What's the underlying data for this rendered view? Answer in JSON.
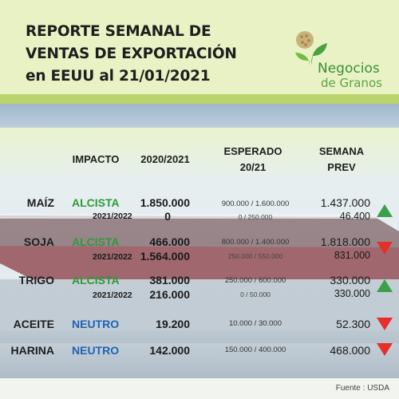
{
  "header": {
    "title": "REPORTE SEMANAL DE\nVENTAS DE EXPORTACIÓN\nen EEUU al 21/01/2021",
    "logo_name_line1": "Negocios",
    "logo_name_line2": "de Granos",
    "brand_color": "#3a8f3a"
  },
  "columns": {
    "impacto": "IMPACTO",
    "year": "2020/2021",
    "esperado_1": "ESPERADO",
    "esperado_2": "20/21",
    "semana_1": "SEMANA",
    "semana_2": "PREV"
  },
  "rows": [
    {
      "product": "MAÍZ",
      "impact": "ALCISTA",
      "value": "1.850.000",
      "sub_year": "2021/2022",
      "sub_value": "0",
      "expected": "900.000 / 1.600.000",
      "expected_sub": "0 / 250.000",
      "prev": "1.437.000",
      "prev_sub": "46.400",
      "trend": "up"
    },
    {
      "product": "SOJA",
      "impact": "ALCISTA",
      "value": "466.000",
      "sub_year": "2021/2022",
      "sub_value": "1.564.000",
      "expected": "800.000 / 1.400.000",
      "expected_sub": "250.000 / 550.000",
      "prev": "1.818.000",
      "prev_sub": "831.000",
      "trend": "down"
    },
    {
      "product": "TRIGO",
      "impact": "ALCISTA",
      "value": "381.000",
      "sub_year": "2021/2022",
      "sub_value": "216.000",
      "expected": "250.000 / 600.000",
      "expected_sub": "0 / 50.000",
      "prev": "330.000",
      "prev_sub": "330.000",
      "trend": "up"
    },
    {
      "product": "ACEITE",
      "impact": "NEUTRO",
      "value": "19.200",
      "expected": "10.000 / 30.000",
      "prev": "52.300",
      "trend": "down"
    },
    {
      "product": "HARINA",
      "impact": "NEUTRO",
      "value": "142.000",
      "expected": "150.000 / 400.000",
      "prev": "468.000",
      "trend": "down"
    }
  ],
  "colors": {
    "alcista": "#2e9a3a",
    "neutro": "#1f63b3",
    "arrow_up": "#3aa04a",
    "arrow_down": "#e4302a",
    "header_bg": "#e9f2c4"
  },
  "footer": {
    "source": "Fuente : USDA"
  }
}
